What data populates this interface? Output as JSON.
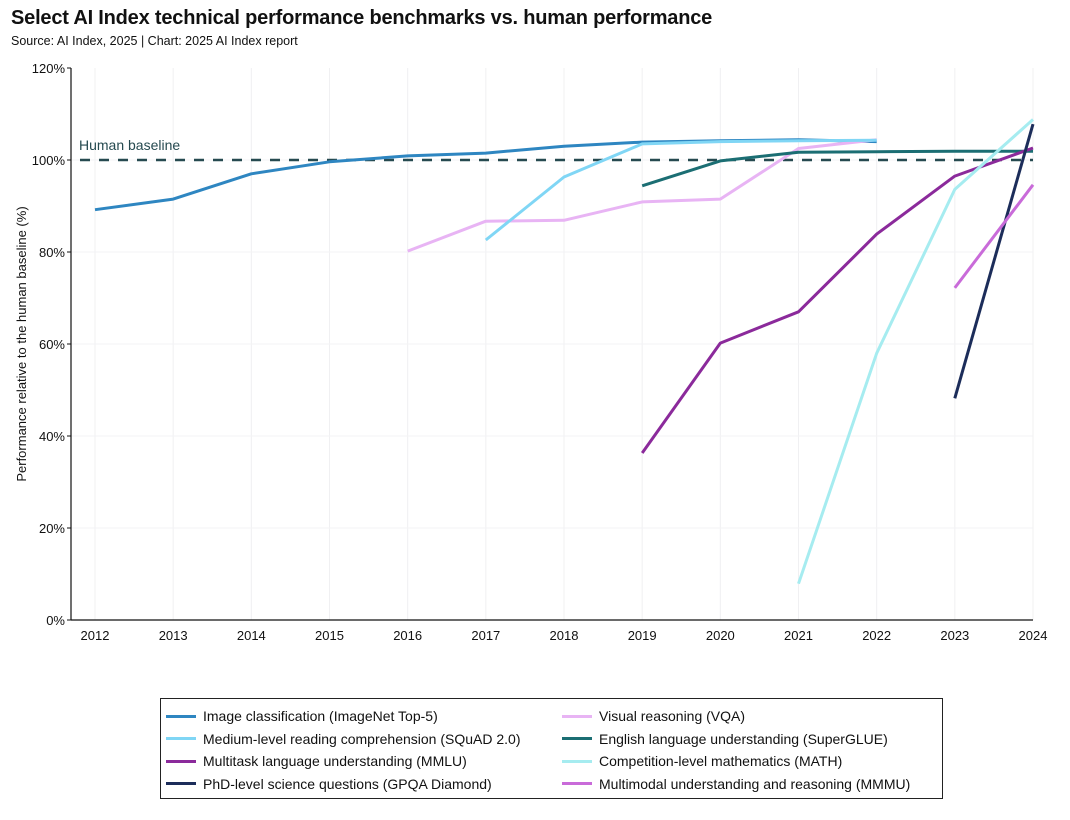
{
  "title": "Select AI Index technical performance benchmarks vs. human performance",
  "subtitle": "Source: AI Index, 2025 | Chart: 2025 AI Index report",
  "chart_data": {
    "type": "line",
    "title": "Select AI Index technical performance benchmarks vs. human performance",
    "xlabel": "",
    "ylabel": "Performance relative to the human baseline (%)",
    "x": [
      2012,
      2013,
      2014,
      2015,
      2016,
      2017,
      2018,
      2019,
      2020,
      2021,
      2022,
      2023,
      2024
    ],
    "xticks": [
      "2012",
      "2013",
      "2014",
      "2015",
      "2016",
      "2017",
      "2018",
      "2019",
      "2020",
      "2021",
      "2022",
      "2023",
      "2024"
    ],
    "yticks": [
      "0%",
      "20%",
      "40%",
      "60%",
      "80%",
      "100%",
      "120%"
    ],
    "ylim": [
      0,
      120
    ],
    "grid": "vertical, faint",
    "legend_position": "bottom",
    "annotation": {
      "label": "Human baseline",
      "y": 100,
      "color": "#264a50"
    },
    "series": [
      {
        "name": "Image classification (ImageNet Top-5)",
        "color": "#2e86c1",
        "x": [
          2012,
          2013,
          2014,
          2015,
          2016,
          2017,
          2018,
          2019,
          2020,
          2021,
          2022
        ],
        "values": [
          89.2,
          91.5,
          97.0,
          99.6,
          100.9,
          101.5,
          103.0,
          103.9,
          104.2,
          104.4,
          104.0
        ]
      },
      {
        "name": "Visual reasoning (VQA)",
        "color": "#e8b4f4",
        "x": [
          2016,
          2017,
          2018,
          2019,
          2020,
          2021,
          2022
        ],
        "values": [
          80.2,
          86.7,
          86.9,
          90.9,
          91.5,
          102.5,
          104.4
        ]
      },
      {
        "name": "Medium-level reading comprehension (SQuAD 2.0)",
        "color": "#80d6f5",
        "x": [
          2017,
          2018,
          2019,
          2020,
          2021,
          2022
        ],
        "values": [
          82.6,
          96.3,
          103.5,
          104.0,
          104.2,
          104.3
        ]
      },
      {
        "name": "English language understanding (SuperGLUE)",
        "color": "#1b6e73",
        "x": [
          2019,
          2020,
          2021,
          2022,
          2023,
          2024
        ],
        "values": [
          94.4,
          99.8,
          101.7,
          101.8,
          101.9,
          101.9
        ]
      },
      {
        "name": "Multitask language understanding (MMLU)",
        "color": "#8b2a9b",
        "x": [
          2019,
          2020,
          2021,
          2022,
          2023,
          2024
        ],
        "values": [
          36.3,
          60.2,
          67.0,
          83.9,
          96.5,
          102.6
        ]
      },
      {
        "name": "Competition-level mathematics (MATH)",
        "color": "#a6ecf0",
        "x": [
          2021,
          2022,
          2023,
          2024
        ],
        "values": [
          7.9,
          58.0,
          93.6,
          108.8
        ]
      },
      {
        "name": "PhD-level science questions (GPQA Diamond)",
        "color": "#1c2d5a",
        "x": [
          2023,
          2024
        ],
        "values": [
          48.2,
          107.8
        ]
      },
      {
        "name": "Multimodal understanding and reasoning (MMMU)",
        "color": "#c96bd9",
        "x": [
          2023,
          2024
        ],
        "values": [
          72.2,
          94.6
        ]
      }
    ],
    "legend_order": [
      0,
      1,
      2,
      3,
      4,
      5,
      6,
      7
    ]
  }
}
